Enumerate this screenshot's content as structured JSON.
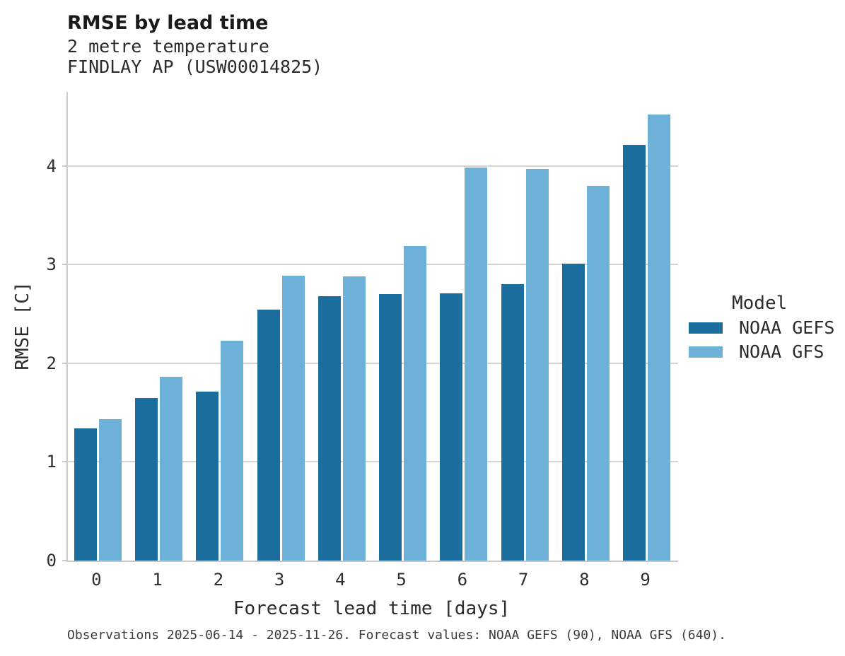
{
  "header": {
    "title": "RMSE by lead time",
    "subtitle_line1": "2 metre temperature",
    "subtitle_line2": "FINDLAY AP (USW00014825)"
  },
  "chart_data": {
    "type": "bar",
    "title": "RMSE by lead time",
    "subtitle": [
      "2 metre temperature",
      "FINDLAY AP (USW00014825)"
    ],
    "categories": [
      0,
      1,
      2,
      3,
      4,
      5,
      6,
      7,
      8,
      9
    ],
    "series": [
      {
        "name": "NOAA GEFS",
        "color": "#1b6d9e",
        "values": [
          1.34,
          1.65,
          1.71,
          2.54,
          2.68,
          2.7,
          2.71,
          2.8,
          3.01,
          4.21
        ]
      },
      {
        "name": "NOAA GFS",
        "color": "#6db0d8",
        "values": [
          1.43,
          1.86,
          2.23,
          2.89,
          2.88,
          3.19,
          3.98,
          3.97,
          3.8,
          4.52
        ]
      }
    ],
    "xlabel": "Forecast lead time [days]",
    "ylabel": "RMSE [C]",
    "ylim": [
      0,
      4.75
    ],
    "yticks": [
      0,
      1,
      2,
      3,
      4
    ],
    "grid": true,
    "legend_title": "Model",
    "legend_position": "right"
  },
  "footer": {
    "caption": "Observations 2025-06-14 - 2025-11-26. Forecast values: NOAA GEFS (90), NOAA GFS (640)."
  }
}
